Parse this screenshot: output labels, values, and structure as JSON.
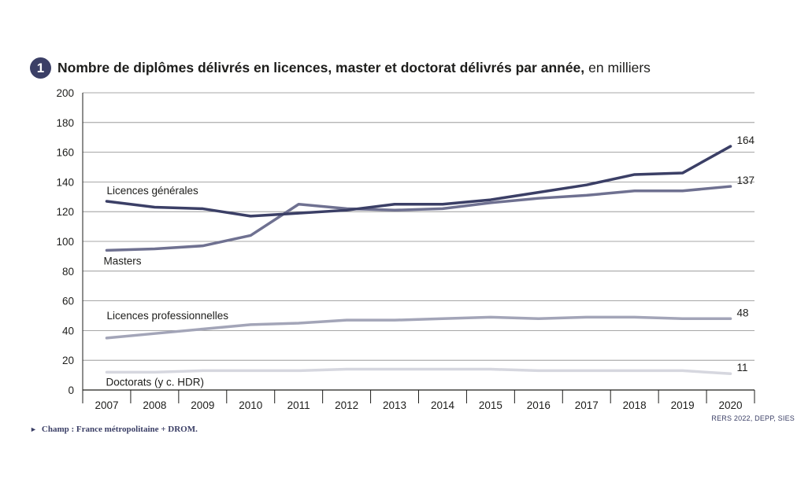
{
  "title": {
    "number": "1",
    "main": "Nombre de diplômes délivrés en licences, master et doctorat délivrés par année,",
    "unit": "en milliers"
  },
  "chart_data": {
    "type": "line",
    "title": "Nombre de diplômes délivrés en licences, master et doctorat délivrés par année, en milliers",
    "xlabel": "",
    "ylabel": "",
    "x": [
      "2007",
      "2008",
      "2009",
      "2010",
      "2011",
      "2012",
      "2013",
      "2014",
      "2015",
      "2016",
      "2017",
      "2018",
      "2019",
      "2020"
    ],
    "ylim": [
      0,
      200
    ],
    "yticks": [
      0,
      20,
      40,
      60,
      80,
      100,
      120,
      140,
      160,
      180,
      200
    ],
    "grid": true,
    "series": [
      {
        "name": "Licences générales",
        "color": "#3b3f66",
        "values": [
          127,
          123,
          122,
          117,
          119,
          121,
          125,
          125,
          128,
          133,
          138,
          145,
          146,
          164
        ],
        "end_label": "164"
      },
      {
        "name": "Masters",
        "color": "#6f7191",
        "values": [
          94,
          95,
          97,
          104,
          125,
          122,
          121,
          122,
          126,
          129,
          131,
          134,
          134,
          137
        ],
        "end_label": "137"
      },
      {
        "name": "Licences professionnelles",
        "color": "#a3a5b8",
        "values": [
          35,
          38,
          41,
          44,
          45,
          47,
          47,
          48,
          49,
          48,
          49,
          49,
          48,
          48
        ],
        "end_label": "48"
      },
      {
        "name": "Doctorats (y c. HDR)",
        "color": "#d6d7df",
        "values": [
          12,
          12,
          13,
          13,
          13,
          14,
          14,
          14,
          14,
          13,
          13,
          13,
          13,
          11
        ],
        "end_label": "11"
      }
    ]
  },
  "footnote": {
    "arrow": "►",
    "text": "Champ : France métropolitaine + DROM."
  },
  "source": "RERS 2022, DEPP, SIES"
}
